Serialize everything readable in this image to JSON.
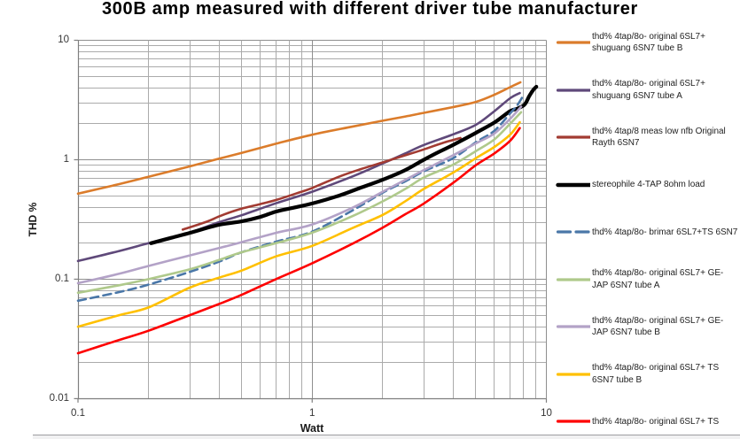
{
  "chart_data": {
    "type": "line",
    "title": "300B amp measured with different driver tube manufacturer",
    "xlabel": "Watt",
    "ylabel": "THD %",
    "x_scale": "log",
    "y_scale": "log",
    "xlim": [
      0.1,
      10
    ],
    "ylim": [
      0.01,
      10
    ],
    "grid": "major-and-minor",
    "legend_position": "right",
    "x_ticks": [
      {
        "value": 0.1,
        "label": "0.1"
      },
      {
        "value": 1,
        "label": "1"
      },
      {
        "value": 10,
        "label": "10"
      }
    ],
    "y_ticks": [
      {
        "value": 10,
        "label": "10"
      },
      {
        "value": 1,
        "label": "1"
      },
      {
        "value": 0.1,
        "label": "0.1"
      },
      {
        "value": 0.01,
        "label": "0.01"
      }
    ],
    "series": [
      {
        "name": "thd% 4tap/8o- original 6SL7+ shuguang 6SN7 tube B",
        "color": "#DB7C2B",
        "width": 2.6,
        "dash": null,
        "points": [
          [
            0.1,
            0.52
          ],
          [
            0.15,
            0.625
          ],
          [
            0.2,
            0.72
          ],
          [
            0.3,
            0.88
          ],
          [
            0.4,
            1.02
          ],
          [
            0.5,
            1.14
          ],
          [
            0.7,
            1.36
          ],
          [
            1,
            1.62
          ],
          [
            1.5,
            1.9
          ],
          [
            2,
            2.12
          ],
          [
            2.5,
            2.3
          ],
          [
            3,
            2.47
          ],
          [
            4,
            2.76
          ],
          [
            5,
            3.05
          ],
          [
            6,
            3.5
          ],
          [
            7,
            4.05
          ],
          [
            7.75,
            4.45
          ]
        ]
      },
      {
        "name": "thd% 4tap/8o- original 6SL7+ shuguang 6SN7 tube A",
        "color": "#5F497A",
        "width": 2.6,
        "dash": null,
        "points": [
          [
            0.1,
            0.142
          ],
          [
            0.15,
            0.172
          ],
          [
            0.2,
            0.2
          ],
          [
            0.3,
            0.246
          ],
          [
            0.4,
            0.3
          ],
          [
            0.5,
            0.343
          ],
          [
            0.7,
            0.432
          ],
          [
            1,
            0.54
          ],
          [
            1.5,
            0.73
          ],
          [
            2,
            0.93
          ],
          [
            2.5,
            1.13
          ],
          [
            3,
            1.33
          ],
          [
            4,
            1.63
          ],
          [
            5,
            1.96
          ],
          [
            6,
            2.55
          ],
          [
            7,
            3.27
          ],
          [
            7.7,
            3.62
          ]
        ]
      },
      {
        "name": "thd% 4tap/8 meas low nfb Original Rayth 6SN7",
        "color": "#A23B32",
        "width": 2.6,
        "dash": null,
        "points": [
          [
            0.28,
            0.26
          ],
          [
            0.35,
            0.3
          ],
          [
            0.4,
            0.335
          ],
          [
            0.45,
            0.365
          ],
          [
            0.5,
            0.39
          ],
          [
            0.6,
            0.425
          ],
          [
            0.7,
            0.46
          ],
          [
            0.85,
            0.52
          ],
          [
            1,
            0.58
          ],
          [
            1.3,
            0.72
          ],
          [
            1.6,
            0.83
          ],
          [
            2,
            0.95
          ],
          [
            2.5,
            1.09
          ],
          [
            3,
            1.22
          ],
          [
            3.6,
            1.38
          ],
          [
            4.3,
            1.52
          ]
        ]
      },
      {
        "name": "stereophile 4-TAP 8ohm load",
        "color": "#000000",
        "width": 4.2,
        "dash": null,
        "points": [
          [
            0.205,
            0.2
          ],
          [
            0.25,
            0.222
          ],
          [
            0.3,
            0.244
          ],
          [
            0.4,
            0.285
          ],
          [
            0.5,
            0.305
          ],
          [
            0.6,
            0.332
          ],
          [
            0.7,
            0.368
          ],
          [
            0.85,
            0.4
          ],
          [
            1,
            0.43
          ],
          [
            1.3,
            0.5
          ],
          [
            1.6,
            0.58
          ],
          [
            2,
            0.68
          ],
          [
            2.5,
            0.82
          ],
          [
            3,
            1.0
          ],
          [
            3.5,
            1.17
          ],
          [
            4,
            1.33
          ],
          [
            5,
            1.68
          ],
          [
            6,
            2.05
          ],
          [
            7,
            2.55
          ],
          [
            7.5,
            2.67
          ],
          [
            8,
            2.85
          ],
          [
            8.22,
            3.05
          ],
          [
            8.44,
            3.39
          ],
          [
            8.67,
            3.69
          ],
          [
            8.86,
            3.91
          ],
          [
            9.06,
            4.08
          ]
        ]
      },
      {
        "name": "thd% 4tap/8o- brimar 6SL7+TS 6SN7",
        "color": "#4A77A8",
        "width": 2.6,
        "dash": "9 5.5",
        "points": [
          [
            0.1,
            0.066
          ],
          [
            0.15,
            0.078
          ],
          [
            0.2,
            0.09
          ],
          [
            0.3,
            0.115
          ],
          [
            0.4,
            0.14
          ],
          [
            0.5,
            0.168
          ],
          [
            0.7,
            0.206
          ],
          [
            1,
            0.25
          ],
          [
            1.5,
            0.38
          ],
          [
            2,
            0.53
          ],
          [
            2.5,
            0.66
          ],
          [
            3,
            0.8
          ],
          [
            4,
            1.03
          ],
          [
            5,
            1.4
          ],
          [
            6,
            1.75
          ],
          [
            7,
            2.44
          ],
          [
            7.5,
            2.85
          ],
          [
            7.9,
            3.34
          ]
        ]
      },
      {
        "name": "thd% 4tap/8o- original 6SL7+ GE-JAP 6SN7 tube A",
        "color": "#AFC98B",
        "width": 2.6,
        "dash": null,
        "points": [
          [
            0.1,
            0.077
          ],
          [
            0.15,
            0.089
          ],
          [
            0.2,
            0.1
          ],
          [
            0.3,
            0.121
          ],
          [
            0.4,
            0.145
          ],
          [
            0.5,
            0.168
          ],
          [
            0.7,
            0.2
          ],
          [
            1,
            0.245
          ],
          [
            1.5,
            0.34
          ],
          [
            2,
            0.448
          ],
          [
            2.5,
            0.57
          ],
          [
            3,
            0.71
          ],
          [
            4,
            0.91
          ],
          [
            5,
            1.18
          ],
          [
            6,
            1.48
          ],
          [
            7,
            2.0
          ],
          [
            7.8,
            2.5
          ]
        ]
      },
      {
        "name": "thd% 4tap/8o- original 6SL7+ GE-JAP 6SN7 tube B",
        "color": "#B3A2C7",
        "width": 2.6,
        "dash": null,
        "points": [
          [
            0.1,
            0.0925
          ],
          [
            0.15,
            0.111
          ],
          [
            0.2,
            0.129
          ],
          [
            0.3,
            0.158
          ],
          [
            0.4,
            0.182
          ],
          [
            0.5,
            0.204
          ],
          [
            0.7,
            0.244
          ],
          [
            1,
            0.287
          ],
          [
            1.5,
            0.4
          ],
          [
            2,
            0.54
          ],
          [
            2.5,
            0.68
          ],
          [
            3,
            0.82
          ],
          [
            4,
            1.09
          ],
          [
            5,
            1.37
          ],
          [
            6,
            1.66
          ],
          [
            7,
            2.2
          ],
          [
            7.8,
            2.78
          ]
        ]
      },
      {
        "name": "thd% 4tap/8o- original 6SL7+ TS 6SN7 tube B",
        "color": "#FFC000",
        "width": 2.6,
        "dash": null,
        "points": [
          [
            0.1,
            0.04
          ],
          [
            0.15,
            0.05
          ],
          [
            0.2,
            0.058
          ],
          [
            0.3,
            0.085
          ],
          [
            0.4,
            0.103
          ],
          [
            0.5,
            0.118
          ],
          [
            0.7,
            0.155
          ],
          [
            1,
            0.19
          ],
          [
            1.5,
            0.27
          ],
          [
            2,
            0.345
          ],
          [
            2.5,
            0.45
          ],
          [
            3,
            0.57
          ],
          [
            4,
            0.78
          ],
          [
            5,
            1.03
          ],
          [
            6,
            1.28
          ],
          [
            7,
            1.62
          ],
          [
            7.7,
            2.06
          ]
        ]
      },
      {
        "name": "thd% 4tap/8o- original 6SL7+ TS",
        "color": "#FE0000",
        "width": 2.6,
        "dash": null,
        "points": [
          [
            0.1,
            0.024
          ],
          [
            0.15,
            0.031
          ],
          [
            0.2,
            0.037
          ],
          [
            0.3,
            0.05
          ],
          [
            0.4,
            0.062
          ],
          [
            0.5,
            0.074
          ],
          [
            0.7,
            0.1
          ],
          [
            1,
            0.136
          ],
          [
            1.5,
            0.2
          ],
          [
            2,
            0.27
          ],
          [
            2.5,
            0.35
          ],
          [
            3,
            0.43
          ],
          [
            4,
            0.64
          ],
          [
            5,
            0.9
          ],
          [
            6,
            1.13
          ],
          [
            7,
            1.44
          ],
          [
            7.7,
            1.84
          ]
        ]
      }
    ]
  },
  "legend": {
    "items": [
      {
        "series": 0,
        "lines": [
          "thd% 4tap/8o- original 6SL7+",
          "shuguang 6SN7 tube B"
        ]
      },
      {
        "series": 1,
        "lines": [
          "thd% 4tap/8o- original 6SL7+",
          "shuguang 6SN7 tube A"
        ]
      },
      {
        "series": 2,
        "lines": [
          "thd% 4tap/8 meas low nfb Original",
          "Rayth 6SN7"
        ]
      },
      {
        "series": 3,
        "lines": [
          "stereophile 4-TAP 8ohm load"
        ]
      },
      {
        "series": 4,
        "lines": [
          "thd% 4tap/8o- brimar 6SL7+TS 6SN7"
        ]
      },
      {
        "series": 5,
        "lines": [
          "thd% 4tap/8o- original 6SL7+ GE-",
          "JAP 6SN7 tube A"
        ]
      },
      {
        "series": 6,
        "lines": [
          "thd% 4tap/8o- original 6SL7+ GE-",
          "JAP 6SN7 tube B"
        ]
      },
      {
        "series": 7,
        "lines": [
          "thd% 4tap/8o- original 6SL7+ TS",
          "6SN7 tube B"
        ]
      },
      {
        "series": 8,
        "lines": [
          "thd% 4tap/8o- original 6SL7+ TS"
        ]
      }
    ]
  },
  "colors": {
    "minor_grid": "#ABABAB",
    "major_grid": "#8F8F8F",
    "axis": "#7F7F7F",
    "tick_text": "#343434",
    "bottom_rule": "#9D9DA0",
    "bottom_strip": "#F1F1F2"
  }
}
